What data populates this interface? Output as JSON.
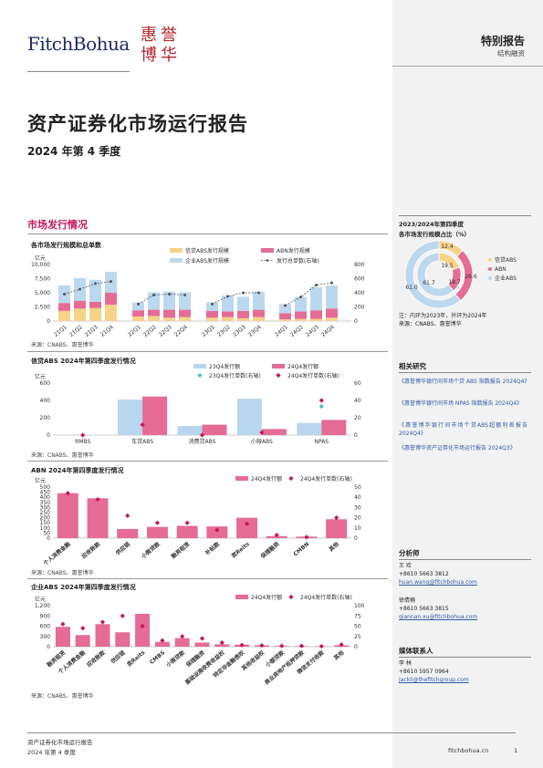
{
  "header": {
    "brand_text": "FitchBohua",
    "brand_seal_text": "惠誉博华",
    "report_type": "特别报告",
    "report_sub": "结构融资"
  },
  "doc": {
    "title": "资产证券化市场运行报告",
    "subtitle": "2024 年第 4 季度",
    "section_title": "市场发行情况"
  },
  "colors": {
    "loan_abs": "#f5d48a",
    "abn": "#e46c95",
    "corp_abs": "#bcd8ef",
    "line": "#555555",
    "diamond": "#c2185b",
    "diamond_alt": "#4fb6d6",
    "bar23": "#b8d6ee",
    "bar24": "#e46c95"
  },
  "chart1": {
    "title": "各市场发行规模和总单数",
    "unit": "亿元",
    "legend": [
      "信贷ABS发行规模",
      "ABN发行规模",
      "企业ABS发行规模",
      "发行总单数(右轴)"
    ],
    "source": "来源：CNABS、惠誉博华",
    "yticks_left": [
      "0",
      "2,500",
      "5,000",
      "7,500",
      "10,000"
    ],
    "yticks_right": [
      "0",
      "200",
      "400",
      "600",
      "800"
    ]
  },
  "chart2": {
    "title": "信贷ABS 2024年第四季度发行情况",
    "unit": "亿元",
    "legend": [
      "23Q4发行额",
      "24Q4发行额",
      "23Q4发行单数(右轴)",
      "24Q4发行单数(右轴)"
    ],
    "source": "来源：CNABS、惠誉博华",
    "yticks_left": [
      "0",
      "200",
      "400",
      "600"
    ],
    "yticks_right": [
      "0",
      "20",
      "40",
      "60"
    ]
  },
  "chart3": {
    "title": "ABN 2024年第四季度发行情况",
    "unit": "亿元",
    "legend": [
      "24Q4发行额",
      "24Q4发行单数(右轴)"
    ],
    "source": "来源：CNABS、惠誉博华",
    "yticks_left": [
      "0",
      "50",
      "100",
      "150",
      "200",
      "250",
      "300",
      "350",
      "400",
      "450",
      "500"
    ],
    "yticks_right": [
      "0",
      "10",
      "20",
      "30",
      "40",
      "50"
    ]
  },
  "chart4": {
    "title": "企业ABS 2024年第四季度发行情况",
    "unit": "亿元",
    "legend": [
      "24Q4发行额",
      "24Q4发行单数(右轴)"
    ],
    "source": "来源：CNABS、惠誉博华",
    "yticks_left": [
      "0",
      "300",
      "600",
      "900",
      "1,200"
    ],
    "yticks_right": [
      "0",
      "25",
      "50",
      "75",
      "100"
    ]
  },
  "chart_data": [
    {
      "type": "bar",
      "title": "各市场发行规模和总单数",
      "ylabel": "亿元",
      "stacked": true,
      "ylim": [
        0,
        10000
      ],
      "y2lim": [
        0,
        800
      ],
      "groups": [
        {
          "categories": [
            "21Q1",
            "21Q2",
            "21Q3",
            "21Q4"
          ]
        },
        {
          "categories": [
            "22Q1",
            "22Q2",
            "22Q3",
            "22Q4"
          ]
        },
        {
          "categories": [
            "23Q1",
            "23Q2",
            "23Q3",
            "23Q4"
          ]
        },
        {
          "categories": [
            "24Q1",
            "24Q2",
            "24Q3",
            "24Q4"
          ]
        }
      ],
      "series": [
        {
          "name": "信贷ABS发行规模",
          "values": [
            [
              1800,
              2200,
              2300,
              2900
            ],
            [
              800,
              900,
              600,
              700
            ],
            [
              600,
              700,
              500,
              700
            ],
            [
              300,
              400,
              400,
              600
            ]
          ]
        },
        {
          "name": "ABN发行规模",
          "values": [
            [
              1400,
              1400,
              1100,
              2100
            ],
            [
              1100,
              1100,
              1400,
              1300
            ],
            [
              1200,
              1000,
              1300,
              1300
            ],
            [
              1100,
              1300,
              1500,
              1600
            ]
          ]
        },
        {
          "name": "企业ABS发行规模",
          "values": [
            [
              3100,
              4000,
              3900,
              3700
            ],
            [
              1400,
              3100,
              3200,
              3100
            ],
            [
              1500,
              2800,
              2500,
              3200
            ],
            [
              1600,
              2600,
              4100,
              4100
            ]
          ]
        },
        {
          "name": "发行总单数(右轴)",
          "axis": "right",
          "values": [
            [
              380,
              450,
              530,
              560
            ],
            [
              240,
              370,
              380,
              370
            ],
            [
              240,
              350,
              400,
              400
            ],
            [
              220,
              340,
              510,
              540
            ]
          ]
        }
      ]
    },
    {
      "type": "bar",
      "title": "信贷ABS 2024年第四季度发行情况",
      "ylabel": "亿元",
      "categories": [
        "RMBS",
        "车贷ABS",
        "消费贷ABS",
        "小微ABS",
        "NPAS"
      ],
      "ylim": [
        0,
        600
      ],
      "y2lim": [
        0,
        60
      ],
      "series": [
        {
          "name": "23Q4发行额",
          "values": [
            0,
            410,
            105,
            420,
            140
          ]
        },
        {
          "name": "24Q4发行额",
          "values": [
            0,
            445,
            120,
            70,
            175
          ]
        },
        {
          "name": "23Q4发行单数(右轴)",
          "axis": "right",
          "values": [
            0,
            0,
            0,
            0,
            33
          ]
        },
        {
          "name": "24Q4发行单数(右轴)",
          "axis": "right",
          "values": [
            0,
            12,
            0,
            3,
            40
          ]
        }
      ]
    },
    {
      "type": "bar",
      "title": "ABN 2024年第四季度发行情况",
      "ylabel": "亿元",
      "categories": [
        "个人消费金融",
        "应收账款",
        "供应链",
        "小微贷款",
        "融资租赁",
        "补贴款",
        "类Reits",
        "保理融资",
        "CMBN",
        "其他"
      ],
      "ylim": [
        0,
        500
      ],
      "y2lim": [
        0,
        50
      ],
      "series": [
        {
          "name": "24Q4发行额",
          "values": [
            440,
            390,
            90,
            110,
            120,
            115,
            200,
            20,
            15,
            185
          ]
        },
        {
          "name": "24Q4发行单数(右轴)",
          "axis": "right",
          "values": [
            44,
            38,
            22,
            15,
            15,
            8,
            14,
            3,
            1,
            20
          ]
        }
      ]
    },
    {
      "type": "bar",
      "title": "企业ABS 2024年第四季度发行情况",
      "ylabel": "亿元",
      "categories": [
        "融资租赁",
        "个人消费金融",
        "应收账款",
        "供应链",
        "类Reits",
        "CMBS",
        "小微贷款",
        "保理融资",
        "基础设施收费收益权",
        "特定非金融债权",
        "其他收益权",
        "小额贷款",
        "商业房地产抵押贷款",
        "微信支付收款",
        "其他"
      ],
      "ylim": [
        0,
        1200
      ],
      "y2lim": [
        0,
        100
      ],
      "series": [
        {
          "name": "24Q4发行额",
          "values": [
            580,
            340,
            660,
            420,
            960,
            140,
            250,
            120,
            70,
            60,
            40,
            20,
            15,
            10,
            40
          ]
        },
        {
          "name": "24Q4发行单数(右轴)",
          "axis": "right",
          "values": [
            55,
            45,
            60,
            75,
            50,
            15,
            25,
            20,
            10,
            4,
            3,
            2,
            2,
            1,
            5
          ]
        }
      ]
    },
    {
      "type": "pie",
      "title": "2023/2024年第四季度各市场发行规模占比（%）",
      "categories": [
        "信贷ABS",
        "ABN",
        "企业ABS"
      ],
      "series": [
        {
          "name": "2023年",
          "values": [
            19.5,
            18.7,
            61.7
          ]
        },
        {
          "name": "2024年",
          "values": [
            12.4,
            26.6,
            61.0
          ]
        }
      ],
      "labels_inner": [
        "19.5",
        "18.7",
        "61.7"
      ],
      "labels_outer": [
        "12.4",
        "26.6",
        "61.0"
      ]
    }
  ],
  "sidebar": {
    "pie_title_line1": "2023/2024年第四季度",
    "pie_title_line2": "各市场发行规模占比（%）",
    "pie_legend": [
      "信贷ABS",
      "ABN",
      "企业ABS"
    ],
    "pie_note_1": "注：内环为2023年，外环为2024年",
    "pie_note_2": "来源：CNABS、惠誉博华",
    "related_title": "相关研究",
    "related": [
      "《惠誉博华银行间市场个贷 ABS 指数报告 2024Q4》",
      "《惠誉博华银行间市场 NPAS 指数报告 2024Q4》",
      "《惠誉博华银行间市场个贷ABS超额利差报告2024Q4》",
      "《惠誉博华资产证券化市场运行报告 2024Q3》"
    ],
    "analyst_title": "分析师",
    "analysts": [
      {
        "name": "王  欢",
        "phone": "+8610 5663 3812",
        "email": "huan.wang@fitchbohua.com"
      },
      {
        "name": "徐倩楠",
        "phone": "+8610 5663 3815",
        "email": "qiannan.xu@fitchbohua.com"
      }
    ],
    "media_title": "媒体联系人",
    "media": {
      "name": "李  林",
      "phone": "+8610 5957 0964",
      "email": "jackli@thefitchgroup.com"
    }
  },
  "footer": {
    "line1": "资产证券化市场运行报告",
    "line2": "2024 年第 4 季度",
    "site": "fitchbohua.cn",
    "page": "1"
  }
}
